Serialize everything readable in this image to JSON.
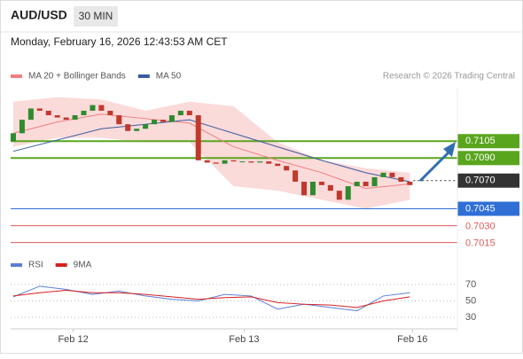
{
  "header": {
    "symbol": "AUD/USD",
    "timeframe": "30 MIN",
    "timestamp": "Monday, February 16, 2026 12:43:53 AM CET",
    "credit": "Research © 2026 Trading Central"
  },
  "chart_data": [
    {
      "type": "candlestick",
      "up_color": "#2e8b2e",
      "down_color": "#c0392b",
      "xlim": [
        -0.3,
        50.3
      ],
      "ylim": [
        0.701,
        0.71516
      ],
      "open": [
        0.7105,
        0.7112,
        0.7124,
        0.7134,
        0.7132,
        0.7128,
        0.7126,
        0.7124,
        0.7128,
        0.7132,
        0.7137,
        0.7132,
        0.7128,
        0.712,
        0.7114,
        0.7116,
        0.712,
        0.7124,
        0.7122,
        0.7128,
        0.7132,
        0.7128,
        0.7088,
        0.7086,
        0.7085,
        0.7088,
        0.7087,
        0.7087,
        0.7086,
        0.7087,
        0.7085,
        0.7083,
        0.7079,
        0.7069,
        0.7057,
        0.7069,
        0.7066,
        0.7061,
        0.7053,
        0.7065,
        0.7069,
        0.7065,
        0.7073,
        0.7077,
        0.7073,
        0.7069
      ],
      "close": [
        0.7112,
        0.7124,
        0.7134,
        0.7132,
        0.7128,
        0.7126,
        0.7124,
        0.7128,
        0.7132,
        0.7137,
        0.7132,
        0.7128,
        0.712,
        0.7114,
        0.7116,
        0.712,
        0.7124,
        0.7122,
        0.7128,
        0.7132,
        0.7128,
        0.7088,
        0.7086,
        0.7085,
        0.7088,
        0.7087,
        0.7087,
        0.7086,
        0.7087,
        0.7085,
        0.7083,
        0.7079,
        0.7069,
        0.7057,
        0.7069,
        0.7066,
        0.7061,
        0.7053,
        0.7065,
        0.7069,
        0.7065,
        0.7073,
        0.7077,
        0.7073,
        0.7069,
        0.7066
      ],
      "overlays": [
        {
          "name": "MA 20 + Bollinger Bands",
          "color": "#f08080",
          "band_color": "#fbdada",
          "x": [
            0,
            5,
            10,
            15,
            20,
            25,
            30,
            35,
            40,
            45
          ],
          "values": [
            0.7112,
            0.7122,
            0.7129,
            0.7125,
            0.7121,
            0.71,
            0.7088,
            0.7077,
            0.7063,
            0.7067
          ],
          "upper": [
            0.714,
            0.7144,
            0.7142,
            0.7132,
            0.714,
            0.7136,
            0.7104,
            0.7088,
            0.7081,
            0.7077
          ],
          "lower": [
            0.71,
            0.7108,
            0.7108,
            0.7104,
            0.7104,
            0.7065,
            0.7061,
            0.7053,
            0.7045,
            0.7053
          ]
        },
        {
          "name": "MA 50",
          "color": "#3a5ba0",
          "x": [
            0,
            10,
            20,
            25,
            30,
            35,
            40,
            45
          ],
          "values": [
            0.7096,
            0.7116,
            0.7124,
            0.7112,
            0.71,
            0.7088,
            0.7077,
            0.7069
          ]
        }
      ],
      "levels": [
        {
          "value": 0.7105,
          "color": "#5aa51e",
          "box": true,
          "dotted": false
        },
        {
          "value": 0.709,
          "label": "0.7090",
          "color": "#5aa51e",
          "box": true,
          "dotted": false
        },
        {
          "value": 0.707,
          "label": "0.7070",
          "color": "#333333",
          "box": true,
          "dotted": true
        },
        {
          "value": 0.7045,
          "color": "#2f6fd6",
          "box": true,
          "dotted": false
        },
        {
          "value": 0.703,
          "label": "0.7030",
          "color": "#e05a5a",
          "box": false,
          "dotted": false
        },
        {
          "value": 0.7015,
          "color": "#e05a5a",
          "box": false,
          "dotted": false
        }
      ]
    },
    {
      "type": "line",
      "xlim": [
        -0.3,
        50.3
      ],
      "ylim": [
        14,
        77
      ],
      "yticks": [
        30,
        50,
        70
      ],
      "xticks": [
        {
          "value": 6.8,
          "label": "Feb 12"
        },
        {
          "value": 26.2,
          "label": "Feb 13"
        },
        {
          "value": 45.3,
          "label": "Feb 16"
        }
      ],
      "series": [
        {
          "name": "RSI",
          "color": "#5b7fd6",
          "x": [
            0,
            3,
            6,
            9,
            12,
            15,
            18,
            21,
            24,
            27,
            30,
            33,
            36,
            39,
            42,
            45
          ],
          "values": [
            55,
            68,
            64,
            58,
            62,
            56,
            52,
            50,
            58,
            56,
            40,
            46,
            42,
            38,
            56,
            60
          ]
        },
        {
          "name": "9MA",
          "color": "#d62020",
          "x": [
            0,
            3,
            6,
            9,
            12,
            15,
            18,
            21,
            24,
            27,
            30,
            33,
            36,
            39,
            42,
            45
          ],
          "values": [
            56,
            60,
            63,
            60,
            60,
            58,
            55,
            52,
            54,
            55,
            48,
            46,
            45,
            42,
            50,
            55
          ]
        }
      ]
    }
  ]
}
